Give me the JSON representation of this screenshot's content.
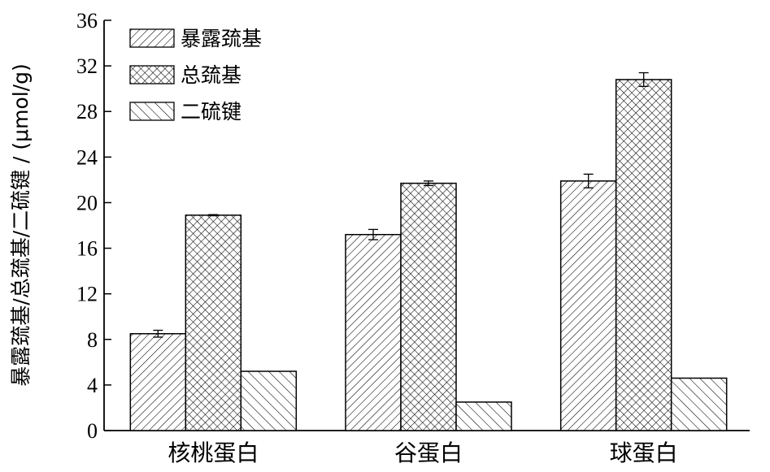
{
  "chart_data": {
    "type": "bar",
    "categories": [
      "核桃蛋白",
      "谷蛋白",
      "球蛋白"
    ],
    "series": [
      {
        "name": "暴露巯基",
        "pattern": "diag-right",
        "values": [
          8.5,
          17.2,
          21.9
        ],
        "errors": [
          0.3,
          0.45,
          0.6
        ]
      },
      {
        "name": "总巯基",
        "pattern": "crosshatch",
        "values": [
          18.9,
          21.7,
          30.8
        ],
        "errors": [
          0.05,
          0.2,
          0.6
        ]
      },
      {
        "name": "二硫键",
        "pattern": "diag-left",
        "values": [
          5.2,
          2.5,
          4.6
        ],
        "errors": [
          0,
          0,
          0
        ]
      }
    ],
    "ylabel": "暴露巯基/总巯基/二硫键 / (μmol/g)",
    "xlabel": "",
    "ylim": [
      0,
      36
    ],
    "yticks": [
      "0",
      "4",
      "8",
      "12",
      "16",
      "20",
      "24",
      "28",
      "32",
      "36"
    ],
    "legend_position": "top-left",
    "grid": false
  }
}
